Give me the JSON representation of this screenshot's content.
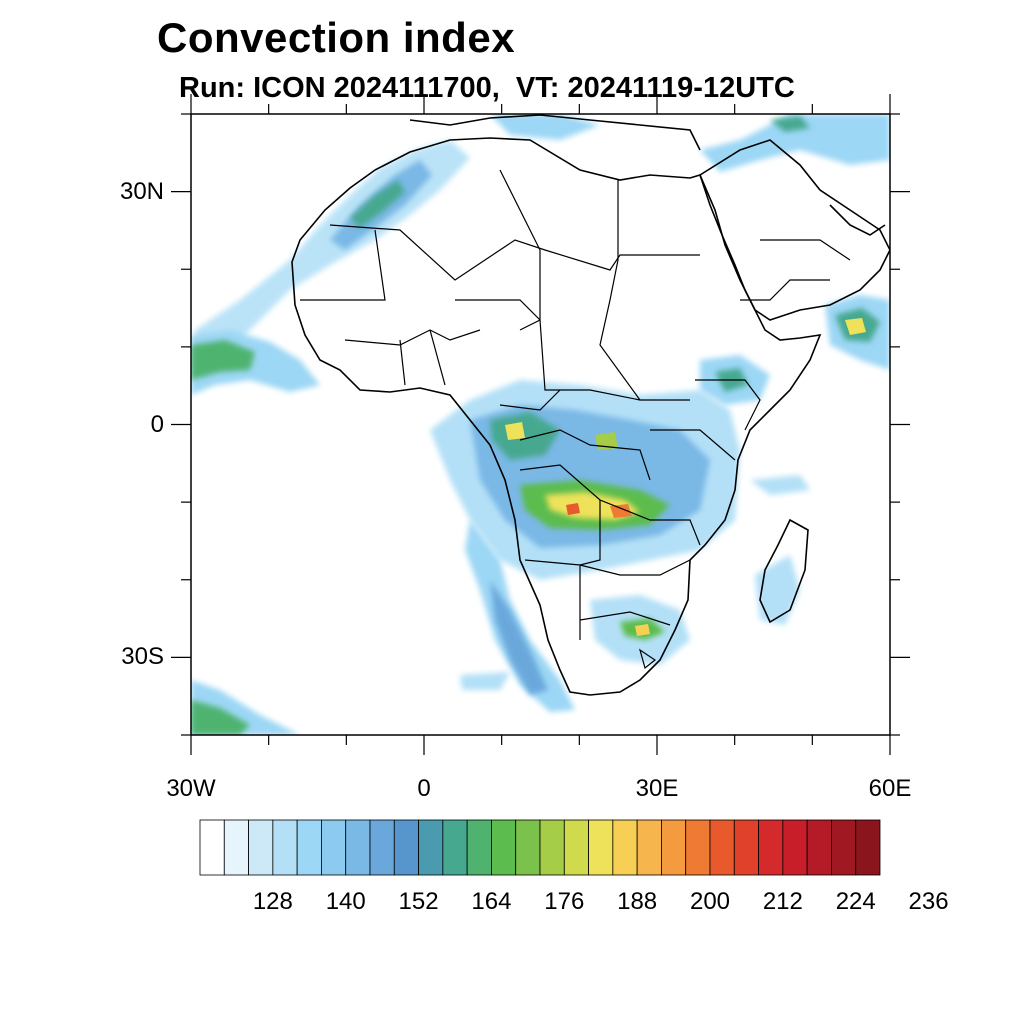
{
  "title": "Convection index",
  "subtitle": "Run: ICON 2024111700,  VT: 20241119-12UTC",
  "axes": {
    "lon_ticks": [
      {
        "value": -30,
        "label": "30W"
      },
      {
        "value": 0,
        "label": "0"
      },
      {
        "value": 30,
        "label": "30E"
      },
      {
        "value": 60,
        "label": "60E"
      }
    ],
    "lat_ticks": [
      {
        "value": 30,
        "label": "30N"
      },
      {
        "value": 0,
        "label": "0"
      },
      {
        "value": -30,
        "label": "30S"
      }
    ],
    "lon_range": [
      -30,
      60
    ],
    "lat_range": [
      -40,
      40
    ]
  },
  "colorbar": {
    "colors": [
      "#ffffff",
      "#e6f5fc",
      "#cde9f8",
      "#b3e0f7",
      "#9cd7f5",
      "#8ccbef",
      "#7ab8e6",
      "#6aa8dc",
      "#5796cc",
      "#4a9bb0",
      "#47a890",
      "#4fb36f",
      "#5cbc4e",
      "#7ac24b",
      "#a6cd48",
      "#cfdb4c",
      "#eee25a",
      "#f8cf55",
      "#f7b54d",
      "#f49a3f",
      "#ef7a33",
      "#e85a2c",
      "#e0412a",
      "#d52a2b",
      "#c81e2a",
      "#b51a27",
      "#a01822",
      "#8a151d"
    ],
    "labels": [
      "128",
      "140",
      "152",
      "164",
      "176",
      "188",
      "200",
      "212",
      "224",
      "236"
    ]
  }
}
